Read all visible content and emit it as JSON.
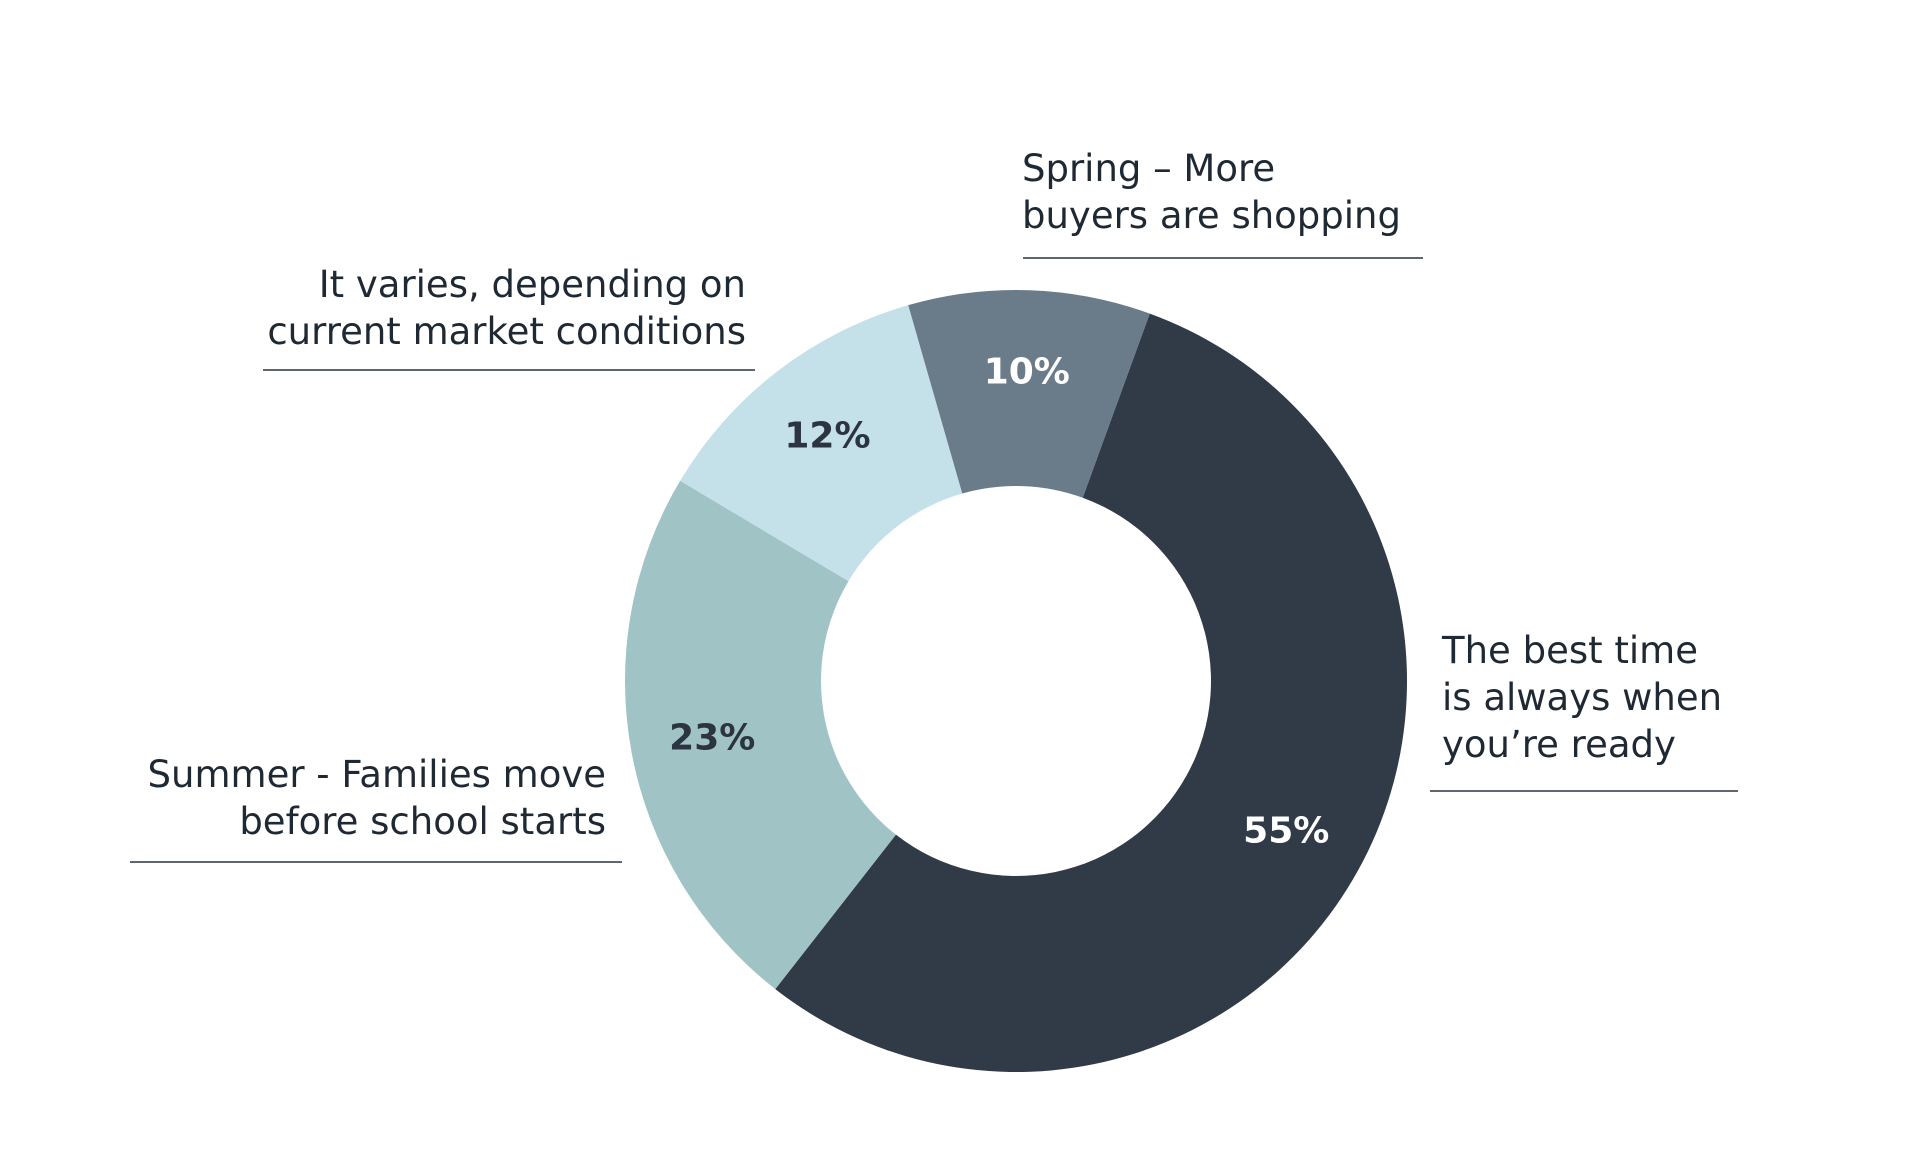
{
  "chart_data": {
    "type": "pie",
    "title": "",
    "categories": [
      "The best time is always when you’re ready",
      "Summer - Families move before school starts",
      "It varies, depending on current market conditions",
      "Spring – More buyers are shopping"
    ],
    "values": [
      55,
      23,
      12,
      10
    ],
    "value_labels": [
      "55%",
      "23%",
      "12%",
      "10%"
    ],
    "colors": [
      "#313a47",
      "#a0c4c6",
      "#c4e1ea",
      "#6a7b8a"
    ],
    "value_label_colors": [
      "#ffffff",
      "#2b3440",
      "#2b3440",
      "#ffffff"
    ],
    "callouts": [
      {
        "lines": [
          "The best time",
          "is always when",
          "you’re ready"
        ]
      },
      {
        "lines": [
          "Summer - Families move",
          "before school starts"
        ]
      },
      {
        "lines": [
          "It varies, depending on",
          "current market conditions"
        ]
      },
      {
        "lines": [
          "Spring – More",
          "buyers are shopping"
        ]
      }
    ],
    "legend": "callouts",
    "grid": false
  }
}
